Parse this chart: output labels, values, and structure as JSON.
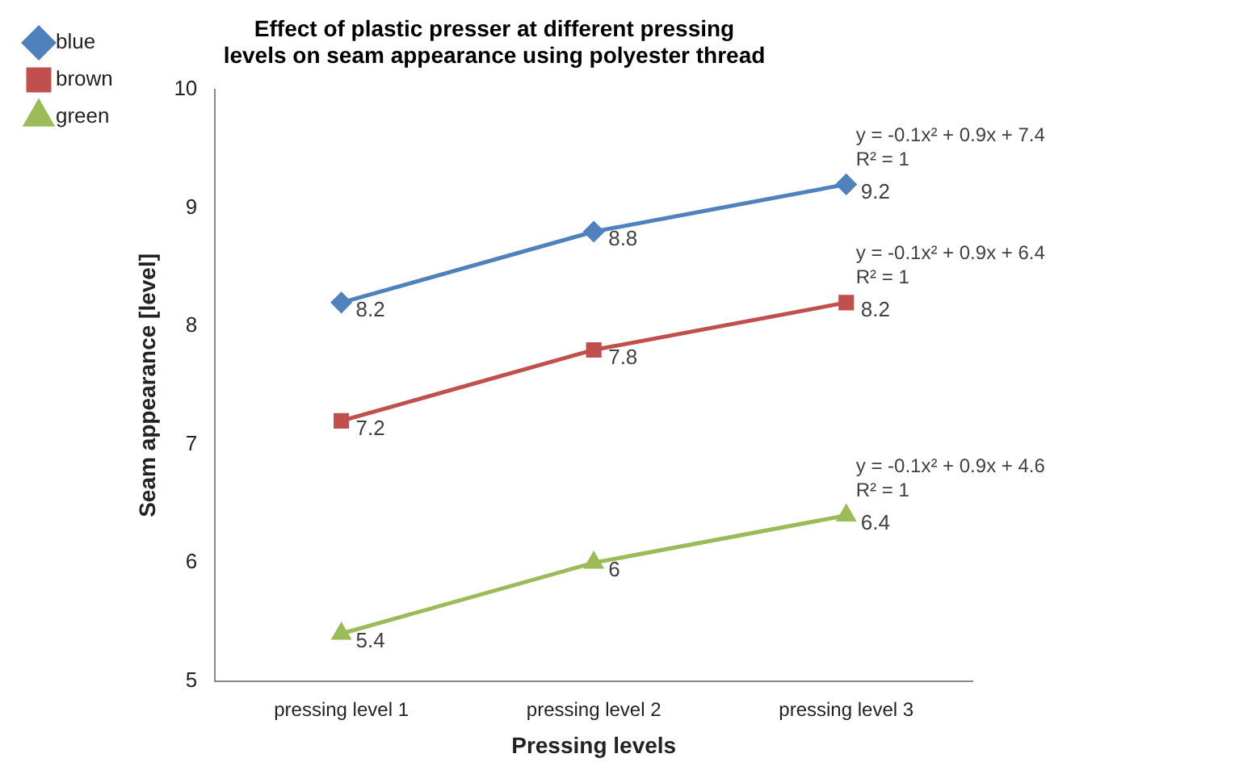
{
  "chart_data": {
    "type": "line",
    "title": "Effect of plastic presser at different pressing levels on seam appearance using polyester thread",
    "xlabel": "Pressing levels",
    "ylabel": "Seam appearance [level]",
    "categories": [
      "pressing level 1",
      "pressing level 2",
      "pressing level 3"
    ],
    "series": [
      {
        "name": "blue",
        "color": "#4f81bd",
        "marker": "diamond",
        "values": [
          8.2,
          8.8,
          9.2
        ]
      },
      {
        "name": "brown",
        "color": "#c0504d",
        "marker": "square",
        "values": [
          7.2,
          7.8,
          8.2
        ]
      },
      {
        "name": "green",
        "color": "#9bbb59",
        "marker": "triangle",
        "values": [
          5.4,
          6,
          6.4
        ]
      }
    ],
    "ylim": [
      5,
      10
    ],
    "yticks": [
      5,
      6,
      7,
      8,
      9,
      10
    ],
    "grid": false,
    "legend": "top left",
    "data_labels": true,
    "annotations": [
      {
        "text": "y = -0.1x² + 0.9x + 7.4",
        "x": "pressing level 3",
        "y": 9.2
      },
      {
        "text": "R² = 1",
        "x": "pressing level 3",
        "y": 9.2
      },
      {
        "text": "y = -0.1x² + 0.9x + 6.4",
        "x": "pressing level 3",
        "y": 8.2
      },
      {
        "text": "R² = 1",
        "x": "pressing level 3",
        "y": 8.2
      },
      {
        "text": "y = -0.1x² + 0.9x + 4.6",
        "x": "pressing level 3",
        "y": 6.4
      },
      {
        "text": "R² = 1",
        "x": "pressing level 3",
        "y": 6.4
      }
    ]
  }
}
